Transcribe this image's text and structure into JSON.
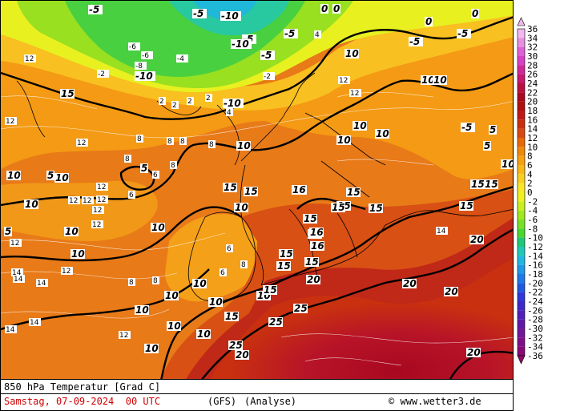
{
  "title": "850 hPa Temperatur [Grad C]",
  "date": "Samstag, 07-09-2024",
  "time": "00 UTC",
  "model": "(GFS)",
  "run_type": "(Analyse)",
  "copyright": "www.wetter3.de",
  "legend": {
    "values": [
      36,
      34,
      32,
      30,
      28,
      26,
      24,
      22,
      20,
      18,
      16,
      14,
      12,
      10,
      8,
      6,
      4,
      2,
      0,
      -2,
      -4,
      -6,
      -8,
      -10,
      -12,
      -14,
      -16,
      -18,
      -20,
      -22,
      -24,
      -26,
      -28,
      -30,
      -32,
      -34,
      -36
    ],
    "colors": {
      "36": "#f4b8f0",
      "34": "#e890e0",
      "32": "#e060d8",
      "30": "#d840c8",
      "28": "#d02898",
      "26": "#c81870",
      "24": "#b81040",
      "22": "#a80820",
      "20": "#b01010",
      "18": "#c01818",
      "16": "#c83010",
      "14": "#d84810",
      "12": "#e86808",
      "10": "#f08808",
      "8": "#f8a010",
      "6": "#f8b818",
      "4": "#f8d020",
      "2": "#f8e828",
      "0": "#f0f020",
      "-2": "#c8f020",
      "-4": "#a0e820",
      "-6": "#78e028",
      "-8": "#48d830",
      "-10": "#20c878",
      "-12": "#20c8b8",
      "-14": "#20b8e0",
      "-16": "#2098e8",
      "-18": "#2078e8",
      "-20": "#2058e0",
      "-22": "#3038d8",
      "-24": "#4028c8",
      "-26": "#5020b8",
      "-28": "#6018a8",
      "-30": "#701898",
      "-32": "#801088",
      "-34": "#880878",
      "-36": "#900868"
    }
  },
  "map_labels": {
    "bold": [
      "10",
      "10",
      "10",
      "10",
      "10",
      "10",
      "10",
      "10",
      "10",
      "10",
      "10",
      "10",
      "10",
      "10",
      "10",
      "10",
      "10",
      "10",
      "10",
      "10",
      "10",
      "10",
      "10",
      "15",
      "15",
      "15",
      "15",
      "15",
      "15",
      "15",
      "15",
      "15",
      "15",
      "15",
      "15",
      "15",
      "15",
      "15",
      "15",
      "15",
      "15",
      "16",
      "16",
      "16",
      "20",
      "20",
      "20",
      "20",
      "20",
      "20",
      "25",
      "25",
      "25",
      "-5",
      "-5",
      "-5",
      "-5",
      "-5",
      "-5",
      "-5",
      "-5",
      "-10",
      "-10",
      "-10",
      "-10",
      "-15",
      "-15",
      "0",
      "0",
      "0",
      "0",
      "0",
      "0",
      "5",
      "5",
      "5",
      "5",
      "5"
    ],
    "small": [
      "12",
      "12",
      "12",
      "12",
      "12",
      "12",
      "12",
      "12",
      "12",
      "12",
      "12",
      "12",
      "12",
      "12",
      "8",
      "8",
      "8",
      "8",
      "8",
      "8",
      "8",
      "8",
      "8",
      "14",
      "14",
      "14",
      "14",
      "14",
      "14",
      "6",
      "6",
      "6",
      "6",
      "4",
      "4",
      "2",
      "2",
      "2",
      "2",
      "-2",
      "-2",
      "-4",
      "-6",
      "-6",
      "-8"
    ]
  }
}
